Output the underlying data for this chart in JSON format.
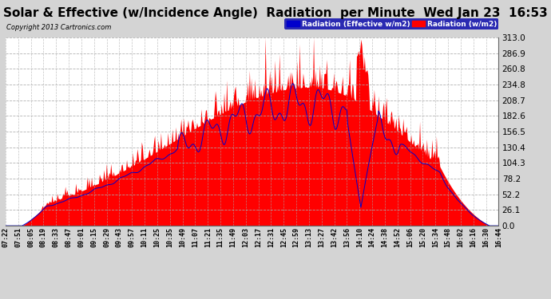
{
  "title": "Solar & Effective (w/Incidence Angle)  Radiation  per Minute  Wed Jan 23  16:53",
  "copyright": "Copyright 2013 Cartronics.com",
  "legend_blue": "Radiation (Effective w/m2)",
  "legend_red": "Radiation (w/m2)",
  "ymin": 0.0,
  "ymax": 313.0,
  "yticks": [
    0.0,
    26.1,
    52.2,
    78.2,
    104.3,
    130.4,
    156.5,
    182.6,
    208.7,
    234.8,
    260.8,
    286.9,
    313.0
  ],
  "background_color": "#d4d4d4",
  "plot_bg_color": "#ffffff",
  "grid_color": "#aaaaaa",
  "fill_color_red": "#ff0000",
  "line_color_blue": "#0000cc",
  "title_fontsize": 11,
  "n_points": 563
}
